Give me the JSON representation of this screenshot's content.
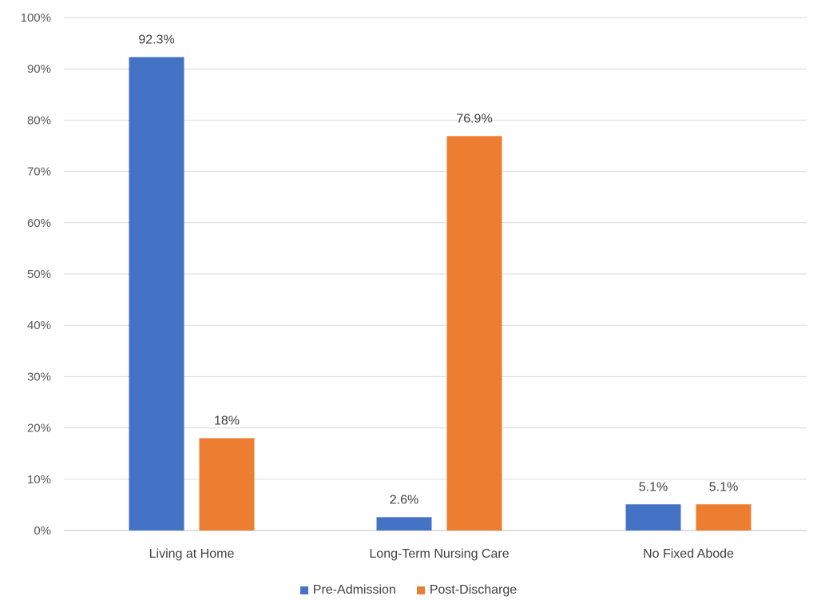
{
  "chart_data": {
    "type": "bar",
    "categories": [
      "Living at Home",
      "Long-Term Nursing Care",
      "No Fixed Abode"
    ],
    "series": [
      {
        "name": "Pre-Admission",
        "values": [
          92.3,
          2.6,
          5.1
        ],
        "labels": [
          "92.3%",
          "2.6%",
          "5.1%"
        ],
        "color": "#4472c4"
      },
      {
        "name": "Post-Discharge",
        "values": [
          18,
          76.9,
          5.1
        ],
        "labels": [
          "18%",
          "76.9%",
          "5.1%"
        ],
        "color": "#ed7d31"
      }
    ],
    "yticks": [
      "0%",
      "10%",
      "20%",
      "30%",
      "40%",
      "50%",
      "60%",
      "70%",
      "80%",
      "90%",
      "100%"
    ],
    "ylim": [
      0,
      100
    ],
    "grid": true,
    "legend_position": "bottom",
    "title": "",
    "xlabel": "",
    "ylabel": ""
  }
}
